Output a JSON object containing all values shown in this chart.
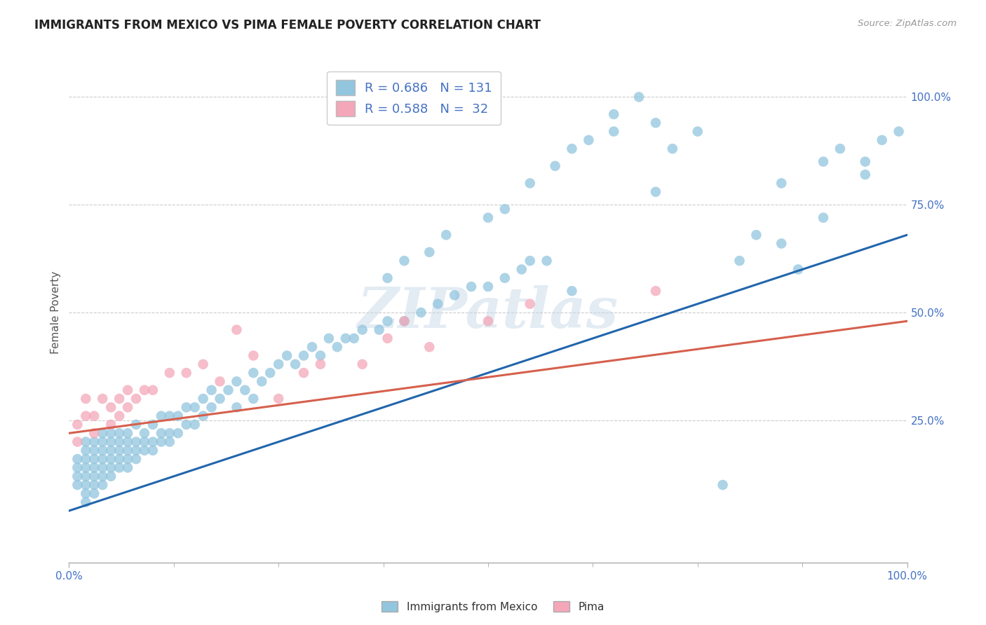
{
  "title": "IMMIGRANTS FROM MEXICO VS PIMA FEMALE POVERTY CORRELATION CHART",
  "source_text": "Source: ZipAtlas.com",
  "ylabel": "Female Poverty",
  "xlim": [
    0,
    1.0
  ],
  "ylim": [
    -0.08,
    1.08
  ],
  "ytick_positions": [
    0.25,
    0.5,
    0.75,
    1.0
  ],
  "ytick_labels": [
    "25.0%",
    "50.0%",
    "75.0%",
    "100.0%"
  ],
  "blue_color": "#92c5de",
  "pink_color": "#f4a7b9",
  "blue_line_color": "#2166ac",
  "pink_line_color": "#d6604d",
  "axis_label_color": "#555555",
  "tick_color": "#4472c4",
  "watermark": "ZIPatlas",
  "bottom_legend_blue": "Immigrants from Mexico",
  "bottom_legend_pink": "Pima",
  "blue_line_y_start": 0.04,
  "blue_line_y_end": 0.68,
  "pink_line_y_start": 0.22,
  "pink_line_y_end": 0.48,
  "background_color": "#ffffff",
  "grid_color": "#cccccc",
  "blue_scatter_x": [
    0.01,
    0.01,
    0.01,
    0.01,
    0.02,
    0.02,
    0.02,
    0.02,
    0.02,
    0.02,
    0.02,
    0.02,
    0.03,
    0.03,
    0.03,
    0.03,
    0.03,
    0.03,
    0.03,
    0.04,
    0.04,
    0.04,
    0.04,
    0.04,
    0.04,
    0.04,
    0.05,
    0.05,
    0.05,
    0.05,
    0.05,
    0.05,
    0.06,
    0.06,
    0.06,
    0.06,
    0.06,
    0.07,
    0.07,
    0.07,
    0.07,
    0.07,
    0.08,
    0.08,
    0.08,
    0.08,
    0.09,
    0.09,
    0.09,
    0.1,
    0.1,
    0.1,
    0.11,
    0.11,
    0.11,
    0.12,
    0.12,
    0.12,
    0.13,
    0.13,
    0.14,
    0.14,
    0.15,
    0.15,
    0.16,
    0.16,
    0.17,
    0.17,
    0.18,
    0.19,
    0.2,
    0.2,
    0.21,
    0.22,
    0.22,
    0.23,
    0.24,
    0.25,
    0.26,
    0.27,
    0.28,
    0.29,
    0.3,
    0.31,
    0.32,
    0.33,
    0.34,
    0.35,
    0.37,
    0.38,
    0.4,
    0.42,
    0.44,
    0.46,
    0.48,
    0.5,
    0.52,
    0.54,
    0.55,
    0.57,
    0.38,
    0.4,
    0.43,
    0.45,
    0.5,
    0.52,
    0.55,
    0.58,
    0.6,
    0.62,
    0.65,
    0.65,
    0.68,
    0.7,
    0.72,
    0.75,
    0.78,
    0.8,
    0.82,
    0.85,
    0.87,
    0.9,
    0.92,
    0.95,
    0.97,
    0.99,
    0.7,
    0.85,
    0.9,
    0.95,
    0.6
  ],
  "blue_scatter_y": [
    0.1,
    0.12,
    0.14,
    0.16,
    0.1,
    0.12,
    0.14,
    0.16,
    0.18,
    0.2,
    0.08,
    0.06,
    0.1,
    0.12,
    0.14,
    0.16,
    0.18,
    0.2,
    0.08,
    0.1,
    0.12,
    0.14,
    0.16,
    0.18,
    0.2,
    0.22,
    0.12,
    0.14,
    0.16,
    0.18,
    0.2,
    0.22,
    0.14,
    0.16,
    0.18,
    0.2,
    0.22,
    0.14,
    0.16,
    0.18,
    0.2,
    0.22,
    0.16,
    0.18,
    0.2,
    0.24,
    0.18,
    0.2,
    0.22,
    0.18,
    0.2,
    0.24,
    0.2,
    0.22,
    0.26,
    0.2,
    0.22,
    0.26,
    0.22,
    0.26,
    0.24,
    0.28,
    0.24,
    0.28,
    0.26,
    0.3,
    0.28,
    0.32,
    0.3,
    0.32,
    0.28,
    0.34,
    0.32,
    0.3,
    0.36,
    0.34,
    0.36,
    0.38,
    0.4,
    0.38,
    0.4,
    0.42,
    0.4,
    0.44,
    0.42,
    0.44,
    0.44,
    0.46,
    0.46,
    0.48,
    0.48,
    0.5,
    0.52,
    0.54,
    0.56,
    0.56,
    0.58,
    0.6,
    0.62,
    0.62,
    0.58,
    0.62,
    0.64,
    0.68,
    0.72,
    0.74,
    0.8,
    0.84,
    0.88,
    0.9,
    0.92,
    0.96,
    1.0,
    0.94,
    0.88,
    0.92,
    0.1,
    0.62,
    0.68,
    0.8,
    0.6,
    0.85,
    0.88,
    0.82,
    0.9,
    0.92,
    0.78,
    0.66,
    0.72,
    0.85,
    0.55
  ],
  "pink_scatter_x": [
    0.01,
    0.01,
    0.02,
    0.02,
    0.03,
    0.03,
    0.04,
    0.05,
    0.05,
    0.06,
    0.06,
    0.07,
    0.07,
    0.08,
    0.09,
    0.1,
    0.12,
    0.14,
    0.16,
    0.18,
    0.2,
    0.22,
    0.25,
    0.28,
    0.3,
    0.35,
    0.38,
    0.4,
    0.43,
    0.5,
    0.55,
    0.7
  ],
  "pink_scatter_y": [
    0.2,
    0.24,
    0.26,
    0.3,
    0.22,
    0.26,
    0.3,
    0.24,
    0.28,
    0.26,
    0.3,
    0.28,
    0.32,
    0.3,
    0.32,
    0.32,
    0.36,
    0.36,
    0.38,
    0.34,
    0.46,
    0.4,
    0.3,
    0.36,
    0.38,
    0.38,
    0.44,
    0.48,
    0.42,
    0.48,
    0.52,
    0.55
  ]
}
